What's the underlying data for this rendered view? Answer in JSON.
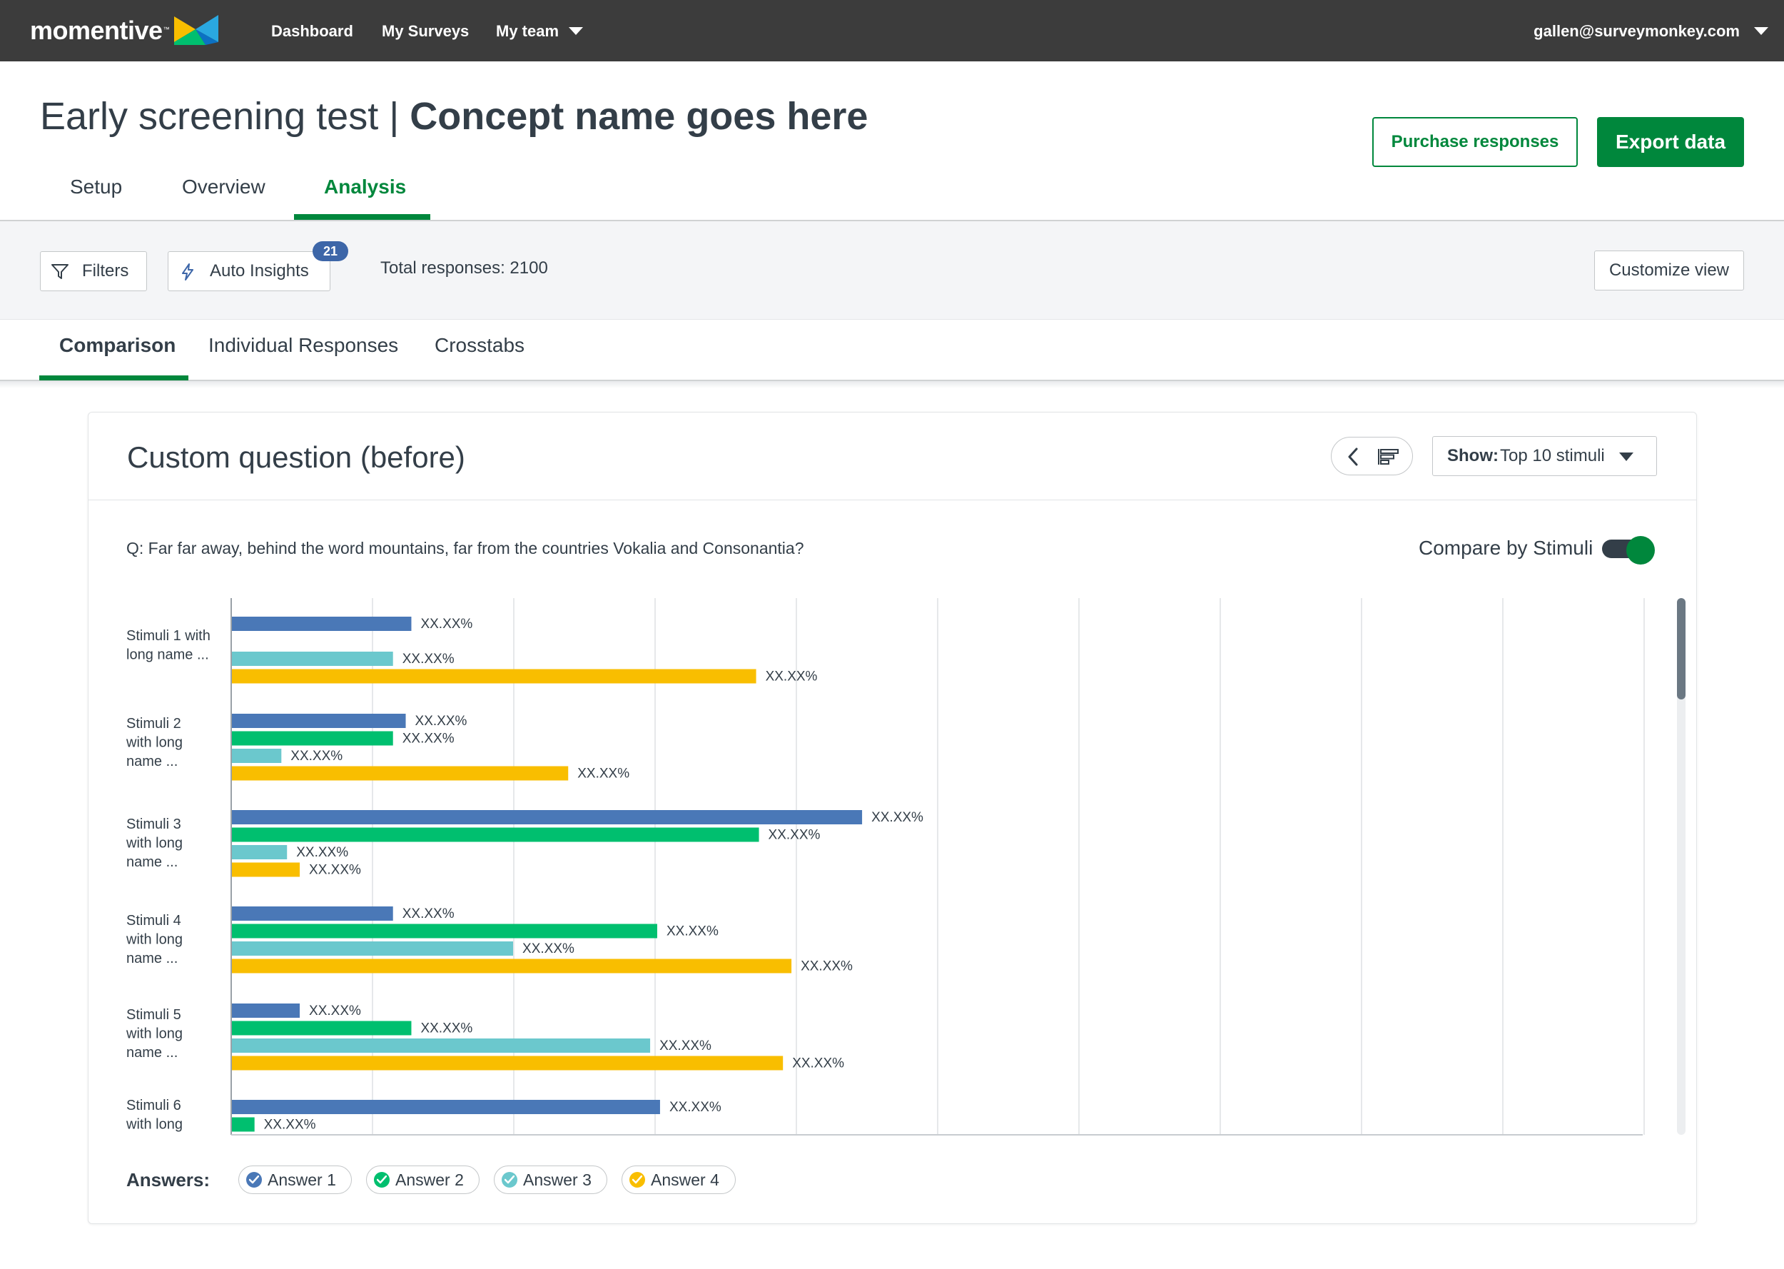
{
  "nav": {
    "logo_text": "momentive",
    "logo_tm": "™",
    "items": [
      {
        "label": "Dashboard"
      },
      {
        "label": "My Surveys"
      },
      {
        "label": "My team"
      }
    ],
    "account": "gallen@surveymonkey.com"
  },
  "header": {
    "title_prefix": "Early screening test | ",
    "title_strong": "Concept name goes here",
    "purchase_label": "Purchase responses",
    "export_label": "Export data",
    "tabs": [
      {
        "label": "Setup"
      },
      {
        "label": "Overview"
      },
      {
        "label": "Analysis",
        "active": true
      }
    ]
  },
  "filterbar": {
    "filters_label": "Filters",
    "insights_label": "Auto Insights",
    "insights_count": "21",
    "total_text": "Total responses: 2100",
    "customize_label": "Customize view"
  },
  "subtabs": [
    {
      "label": "Comparison",
      "active": true
    },
    {
      "label": "Individual Responses"
    },
    {
      "label": "Crosstabs"
    }
  ],
  "card": {
    "title": "Custom question (before)",
    "show_label": "Show:",
    "show_value": "Top 10 stimuli",
    "question": "Q: Far far away, behind the word mountains, far from the countries Vokalia and Consonantia?",
    "compare_label": "Compare by Stimuli",
    "compare_on": true,
    "legend_title": "Answers:"
  },
  "colors": {
    "brand_green": "#00873c",
    "nav_bg": "#3c3c3c",
    "answer1": "#4a78b7",
    "answer2": "#00bf6f",
    "answer3": "#6bc8cd",
    "answer4": "#f9be00"
  },
  "chart_data": {
    "type": "bar",
    "orientation": "horizontal",
    "xlim": [
      0,
      100
    ],
    "grid": true,
    "legend_position": "bottom",
    "series": [
      {
        "name": "Answer 1",
        "color": "#4a78b7"
      },
      {
        "name": "Answer 2",
        "color": "#00bf6f"
      },
      {
        "name": "Answer 3",
        "color": "#6bc8cd"
      },
      {
        "name": "Answer 4",
        "color": "#f9be00"
      }
    ],
    "categories": [
      {
        "label": [
          "Stimuli 1 with",
          "long name ..."
        ],
        "values": [
          12.7,
          null,
          11.4,
          37.1
        ],
        "value_labels": [
          "XX.XX%",
          "",
          "XX.XX%",
          "XX.XX%"
        ]
      },
      {
        "label": [
          "Stimuli 2",
          "with long",
          "name ..."
        ],
        "values": [
          12.3,
          11.4,
          3.5,
          23.8
        ],
        "value_labels": [
          "XX.XX%",
          "XX.XX%",
          "XX.XX%",
          "XX.XX%"
        ]
      },
      {
        "label": [
          "Stimuli 3",
          "with long",
          "name ..."
        ],
        "values": [
          44.6,
          37.3,
          3.9,
          4.8
        ],
        "value_labels": [
          "XX.XX%",
          "XX.XX%",
          "XX.XX%",
          "XX.XX%"
        ]
      },
      {
        "label": [
          "Stimuli 4",
          "with long",
          "name ..."
        ],
        "values": [
          11.4,
          30.1,
          19.9,
          39.6
        ],
        "value_labels": [
          "XX.XX%",
          "XX.XX%",
          "XX.XX%",
          "XX.XX%"
        ]
      },
      {
        "label": [
          "Stimuli 5",
          "with long",
          "name ..."
        ],
        "values": [
          4.8,
          12.7,
          29.6,
          39.0
        ],
        "value_labels": [
          "XX.XX%",
          "XX.XX%",
          "XX.XX%",
          "XX.XX%"
        ]
      },
      {
        "label": [
          "Stimuli 6",
          "with long"
        ],
        "values": [
          30.3,
          1.6,
          null,
          null
        ],
        "value_labels": [
          "XX.XX%",
          "XX.XX%",
          "",
          ""
        ]
      }
    ]
  }
}
